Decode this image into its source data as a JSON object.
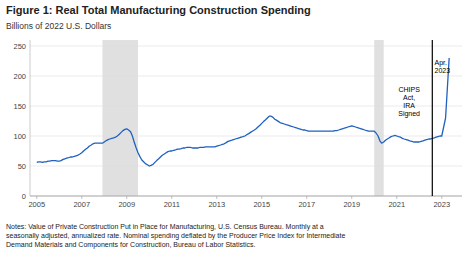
{
  "chart_data": {
    "type": "line",
    "title": "Figure 1: Real Total Manufacturing Construction Spending",
    "y_label": "Billions of 2022 U.S. Dollars",
    "color": "#2060c0",
    "xlim": [
      2004.7,
      2023.9
    ],
    "xticks": [
      2005,
      2007,
      2009,
      2011,
      2013,
      2015,
      2017,
      2019,
      2021,
      2023
    ],
    "ylim": [
      0,
      260
    ],
    "yticks": [
      0,
      50,
      100,
      150,
      200,
      250
    ],
    "grid": true,
    "recession_bands": [
      [
        2007.92,
        2009.5
      ],
      [
        2020.0,
        2020.42
      ]
    ],
    "vline_x": 2022.58,
    "annotations": [
      {
        "text": "CHIPS\nAct,\nIRA\nSigned",
        "x": 2021.55,
        "y": 158
      },
      {
        "text": "Apr.\n2023",
        "x": 2022.68,
        "y": 215
      }
    ],
    "notes": "Notes: Value of Private Construction Put in Place for Manufacturing, U.S. Census Bureau. Monthly at a\nseasonally adjusted, annualized rate. Nominal spending deflated by the Producer Price Index for Intermediate\nDemand Materials and Components for Construction, Bureau of Labor Statistics.",
    "x": [
      2005.0,
      2005.08,
      2005.17,
      2005.25,
      2005.33,
      2005.42,
      2005.5,
      2005.58,
      2005.67,
      2005.75,
      2005.83,
      2005.92,
      2006.0,
      2006.08,
      2006.17,
      2006.25,
      2006.33,
      2006.42,
      2006.5,
      2006.58,
      2006.67,
      2006.75,
      2006.83,
      2006.92,
      2007.0,
      2007.08,
      2007.17,
      2007.25,
      2007.33,
      2007.42,
      2007.5,
      2007.58,
      2007.67,
      2007.75,
      2007.83,
      2007.92,
      2008.0,
      2008.08,
      2008.17,
      2008.25,
      2008.33,
      2008.42,
      2008.5,
      2008.58,
      2008.67,
      2008.75,
      2008.83,
      2008.92,
      2009.0,
      2009.08,
      2009.17,
      2009.25,
      2009.33,
      2009.42,
      2009.5,
      2009.58,
      2009.67,
      2009.75,
      2009.83,
      2009.92,
      2010.0,
      2010.08,
      2010.17,
      2010.25,
      2010.33,
      2010.42,
      2010.5,
      2010.58,
      2010.67,
      2010.75,
      2010.83,
      2010.92,
      2011.0,
      2011.08,
      2011.17,
      2011.25,
      2011.33,
      2011.42,
      2011.5,
      2011.58,
      2011.67,
      2011.75,
      2011.83,
      2011.92,
      2012.0,
      2012.08,
      2012.17,
      2012.25,
      2012.33,
      2012.42,
      2012.5,
      2012.58,
      2012.67,
      2012.75,
      2012.83,
      2012.92,
      2013.0,
      2013.08,
      2013.17,
      2013.25,
      2013.33,
      2013.42,
      2013.5,
      2013.58,
      2013.67,
      2013.75,
      2013.83,
      2013.92,
      2014.0,
      2014.08,
      2014.17,
      2014.25,
      2014.33,
      2014.42,
      2014.5,
      2014.58,
      2014.67,
      2014.75,
      2014.83,
      2014.92,
      2015.0,
      2015.08,
      2015.17,
      2015.25,
      2015.33,
      2015.42,
      2015.5,
      2015.58,
      2015.67,
      2015.75,
      2015.83,
      2015.92,
      2016.0,
      2016.08,
      2016.17,
      2016.25,
      2016.33,
      2016.42,
      2016.5,
      2016.58,
      2016.67,
      2016.75,
      2016.83,
      2016.92,
      2017.0,
      2017.08,
      2017.17,
      2017.25,
      2017.33,
      2017.42,
      2017.5,
      2017.58,
      2017.67,
      2017.75,
      2017.83,
      2017.92,
      2018.0,
      2018.08,
      2018.17,
      2018.25,
      2018.33,
      2018.42,
      2018.5,
      2018.58,
      2018.67,
      2018.75,
      2018.83,
      2018.92,
      2019.0,
      2019.08,
      2019.17,
      2019.25,
      2019.33,
      2019.42,
      2019.5,
      2019.58,
      2019.67,
      2019.75,
      2019.83,
      2019.92,
      2020.0,
      2020.08,
      2020.17,
      2020.25,
      2020.33,
      2020.42,
      2020.5,
      2020.58,
      2020.67,
      2020.75,
      2020.83,
      2020.92,
      2021.0,
      2021.08,
      2021.17,
      2021.25,
      2021.33,
      2021.42,
      2021.5,
      2021.58,
      2021.67,
      2021.75,
      2021.83,
      2021.92,
      2022.0,
      2022.08,
      2022.17,
      2022.25,
      2022.33,
      2022.42,
      2022.5,
      2022.58,
      2022.67,
      2022.75,
      2022.83,
      2022.92,
      2023.0,
      2023.17,
      2023.33
    ],
    "values": [
      56,
      57,
      57,
      56,
      57,
      57,
      58,
      58,
      59,
      59,
      59,
      58,
      58,
      59,
      61,
      62,
      63,
      64,
      65,
      65,
      66,
      67,
      68,
      70,
      72,
      75,
      78,
      80,
      83,
      85,
      87,
      88,
      88,
      88,
      88,
      88,
      90,
      92,
      94,
      95,
      96,
      97,
      98,
      100,
      103,
      106,
      109,
      111,
      112,
      110,
      107,
      100,
      90,
      80,
      72,
      66,
      60,
      57,
      54,
      52,
      50,
      51,
      53,
      56,
      59,
      62,
      65,
      68,
      70,
      72,
      74,
      75,
      75,
      76,
      77,
      78,
      78,
      79,
      80,
      80,
      81,
      81,
      81,
      80,
      80,
      80,
      80,
      81,
      81,
      81,
      82,
      82,
      82,
      82,
      82,
      82,
      83,
      84,
      85,
      86,
      87,
      89,
      91,
      92,
      93,
      94,
      95,
      96,
      97,
      98,
      99,
      100,
      102,
      104,
      106,
      108,
      110,
      112,
      115,
      118,
      121,
      124,
      127,
      130,
      133,
      133,
      131,
      128,
      126,
      124,
      122,
      121,
      120,
      119,
      118,
      117,
      116,
      115,
      114,
      113,
      112,
      111,
      110,
      110,
      109,
      108,
      108,
      108,
      108,
      108,
      108,
      108,
      108,
      108,
      108,
      108,
      108,
      108,
      108,
      109,
      109,
      110,
      111,
      112,
      113,
      114,
      115,
      116,
      117,
      116,
      115,
      114,
      113,
      112,
      111,
      110,
      109,
      108,
      108,
      108,
      108,
      105,
      100,
      92,
      88,
      90,
      93,
      95,
      97,
      99,
      100,
      101,
      100,
      99,
      98,
      96,
      95,
      94,
      93,
      92,
      91,
      90,
      90,
      90,
      90,
      91,
      92,
      93,
      94,
      95,
      95,
      96,
      97,
      98,
      99,
      100,
      100,
      130,
      230
    ]
  }
}
